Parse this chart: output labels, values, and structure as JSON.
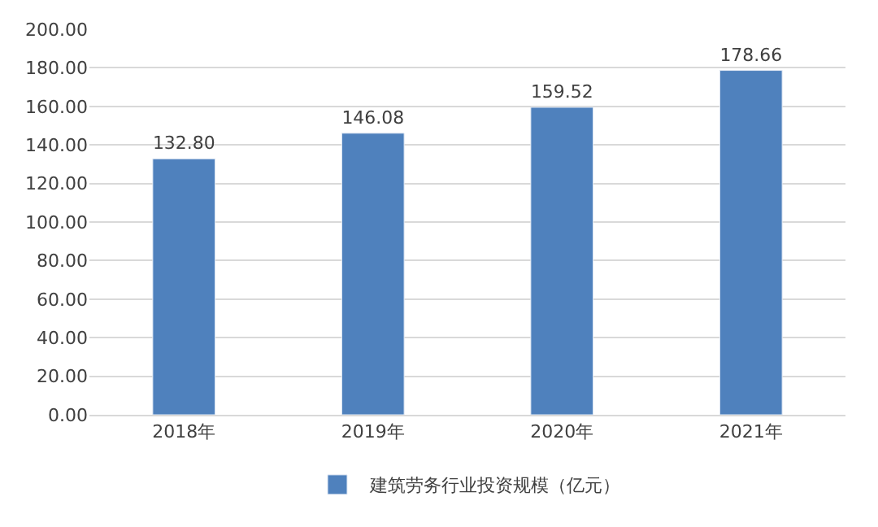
{
  "chart_data": {
    "type": "bar",
    "categories": [
      "2018年",
      "2019年",
      "2020年",
      "2021年"
    ],
    "series": [
      {
        "name": "建筑劳务行业投资规模（亿元）",
        "color": "#4f81bd",
        "values": [
          132.8,
          146.08,
          159.52,
          178.66
        ],
        "value_labels": [
          "132.80",
          "146.08",
          "159.52",
          "178.66"
        ]
      }
    ],
    "ylim": [
      0,
      200
    ],
    "yticks": [
      {
        "value": 0,
        "label": "0.00"
      },
      {
        "value": 20,
        "label": "20.00"
      },
      {
        "value": 40,
        "label": "40.00"
      },
      {
        "value": 60,
        "label": "60.00"
      },
      {
        "value": 80,
        "label": "80.00"
      },
      {
        "value": 100,
        "label": "100.00"
      },
      {
        "value": 120,
        "label": "120.00"
      },
      {
        "value": 140,
        "label": "140.00"
      },
      {
        "value": 160,
        "label": "160.00"
      },
      {
        "value": 180,
        "label": "180.00"
      },
      {
        "value": 200,
        "label": "200.00"
      }
    ],
    "grid": "y",
    "legend": "bottom"
  }
}
